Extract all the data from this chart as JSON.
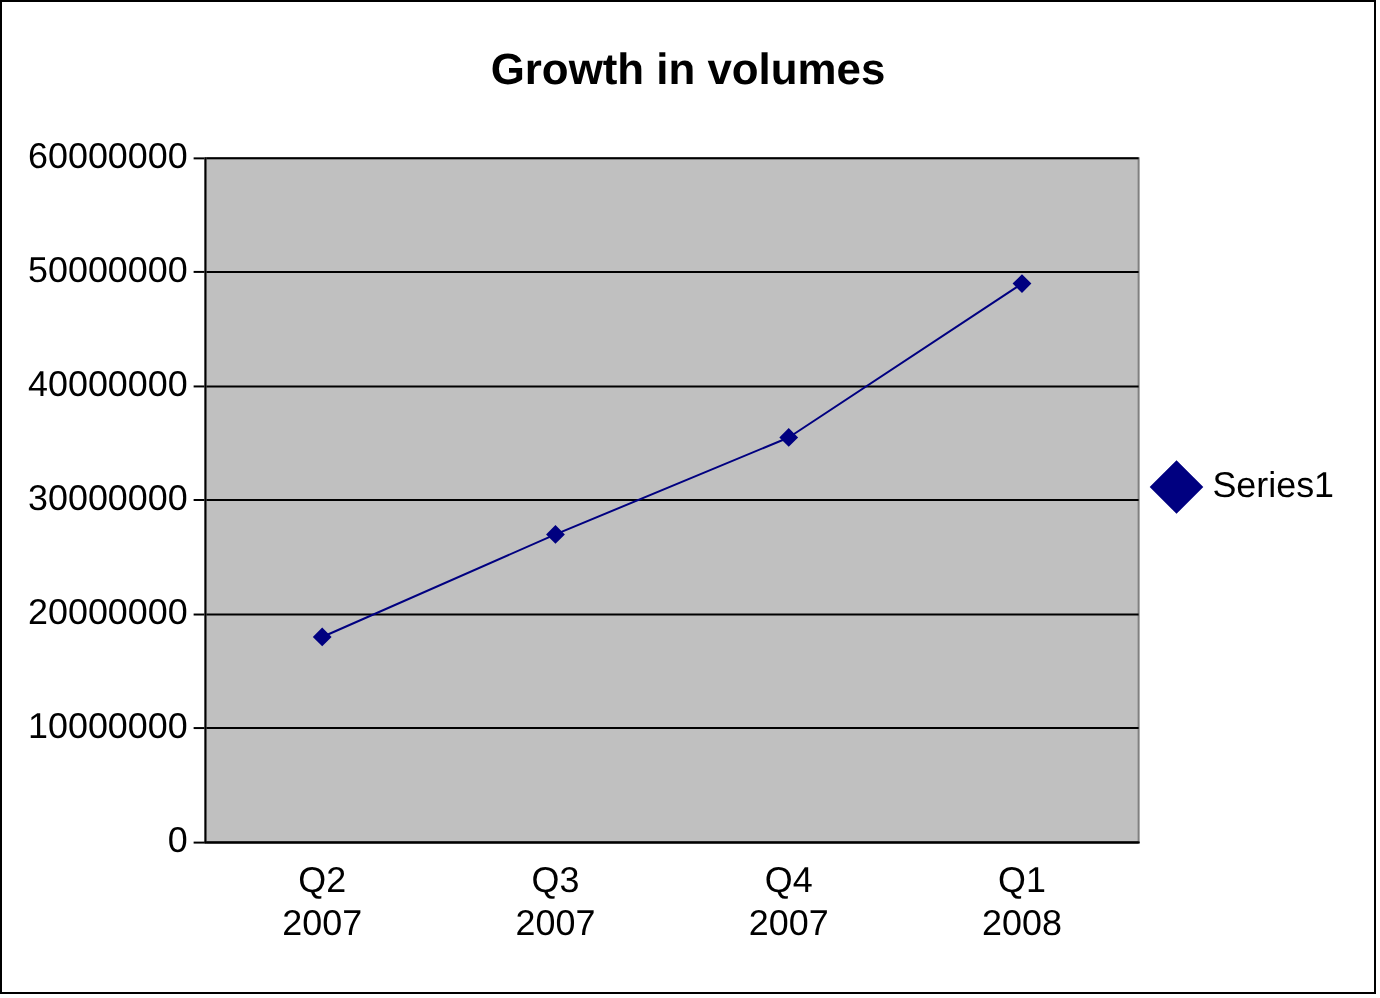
{
  "chart_data": {
    "type": "line",
    "title": "Growth in volumes",
    "categories": [
      "Q2 2007",
      "Q3 2007",
      "Q4 2007",
      "Q1 2008"
    ],
    "series": [
      {
        "name": "Series1",
        "color": "#000080",
        "values": [
          18000000,
          27000000,
          35500000,
          49000000
        ]
      }
    ],
    "ylim": [
      0,
      60000000
    ],
    "yticks": [
      0,
      10000000,
      20000000,
      30000000,
      40000000,
      50000000,
      60000000
    ],
    "grid": "y",
    "legend": "right",
    "marker": "diamond",
    "line_style": "solid"
  }
}
